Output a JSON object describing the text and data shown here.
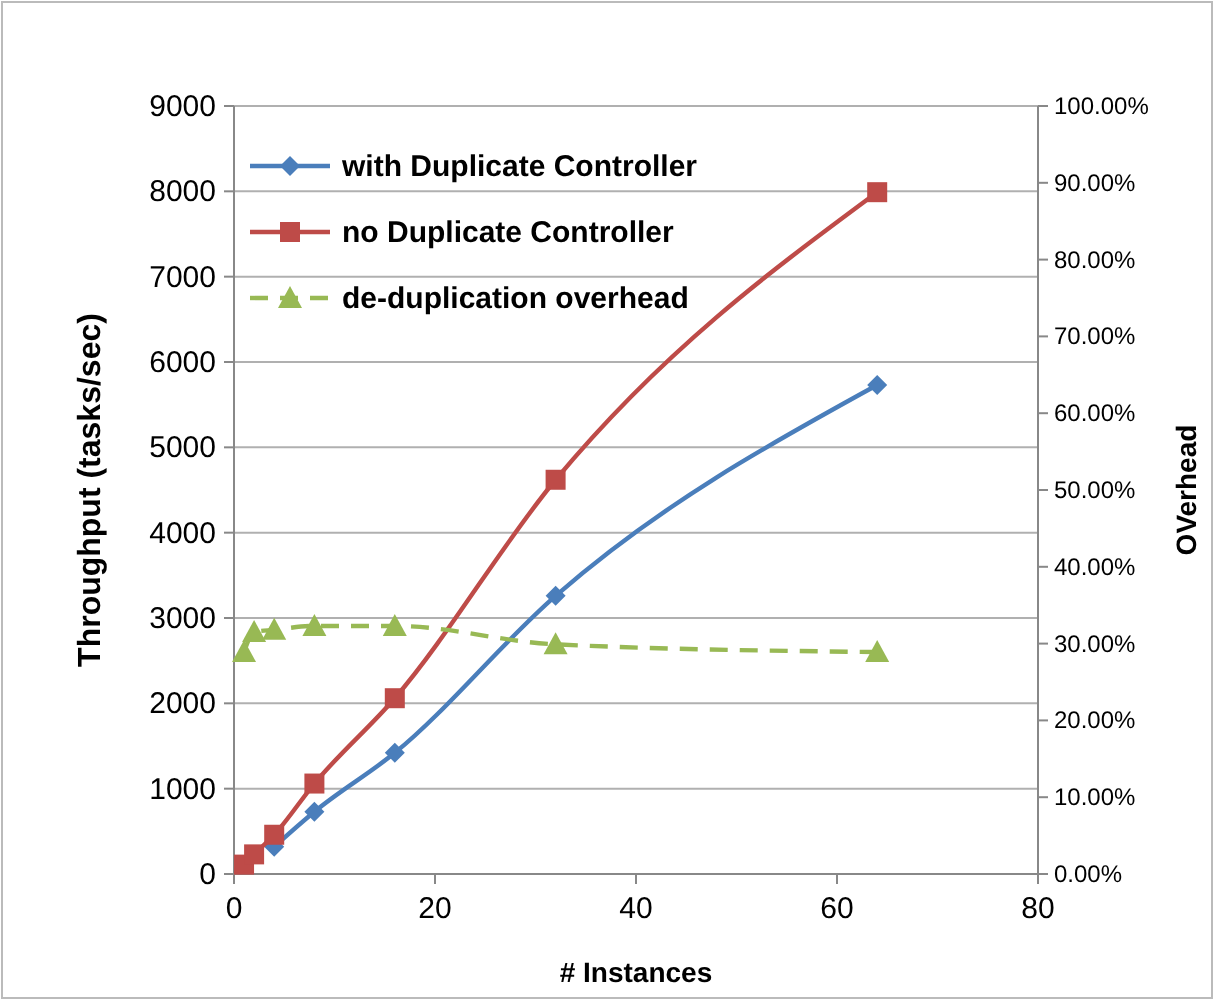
{
  "chart_data": {
    "type": "line",
    "xlabel": "# Instances",
    "ylabel": "Throughput (tasks/sec)",
    "y2label": "OVerhead",
    "x": [
      1,
      2,
      4,
      8,
      16,
      32,
      64
    ],
    "xlim": [
      0,
      80
    ],
    "xticks": [
      0,
      20,
      40,
      60,
      80
    ],
    "ylim": [
      0,
      9000
    ],
    "yticks": [
      0,
      1000,
      2000,
      3000,
      4000,
      5000,
      6000,
      7000,
      8000,
      9000
    ],
    "y2lim": [
      0,
      100
    ],
    "y2ticks": [
      {
        "value": 0,
        "label": "0.00%"
      },
      {
        "value": 10,
        "label": "10.00%"
      },
      {
        "value": 20,
        "label": "20.00%"
      },
      {
        "value": 30,
        "label": "30.00%"
      },
      {
        "value": 40,
        "label": "40.00%"
      },
      {
        "value": 50,
        "label": "50.00%"
      },
      {
        "value": 60,
        "label": "60.00%"
      },
      {
        "value": 70,
        "label": "70.00%"
      },
      {
        "value": 80,
        "label": "80.00%"
      },
      {
        "value": 90,
        "label": "90.00%"
      },
      {
        "value": 100,
        "label": "100.00%"
      }
    ],
    "grid": "y",
    "legend": "top left",
    "series": [
      {
        "name": "with Duplicate Controller",
        "color": "#4a7ebb",
        "marker": "diamond",
        "line_style": "solid",
        "values": [
          null,
          null,
          320,
          730,
          1420,
          3260,
          5730
        ]
      },
      {
        "name": "no Duplicate Controller",
        "color": "#be4b48",
        "marker": "square",
        "line_style": "solid",
        "values": [
          110,
          230,
          460,
          1060,
          2060,
          4620,
          7990
        ]
      },
      {
        "name": "de-duplication overhead",
        "color": "#98b954",
        "marker": "triangle",
        "line_style": "dashed",
        "axis": "y2",
        "values": [
          28.9,
          31.5,
          31.8,
          32.3,
          32.3,
          29.9,
          28.9
        ]
      }
    ]
  }
}
